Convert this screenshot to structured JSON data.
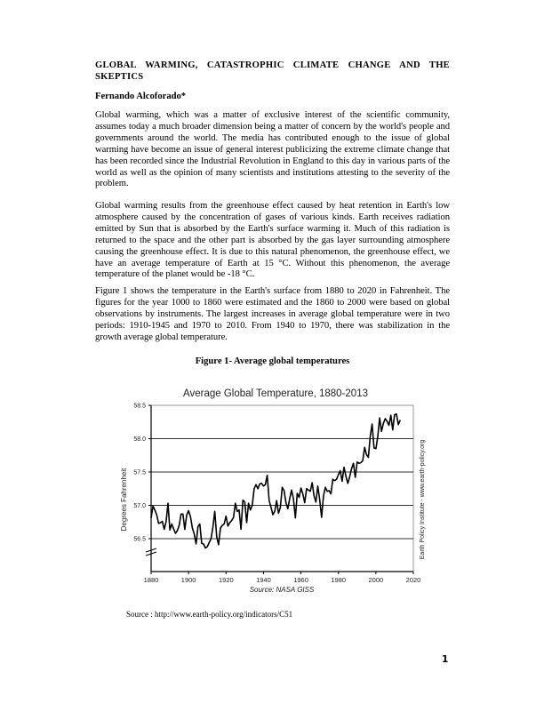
{
  "document": {
    "title": "GLOBAL WARMING, CATASTROPHIC CLIMATE CHANGE AND THE SKEPTICS",
    "author": "Fernando Alcoforado*",
    "paragraphs": [
      "Global warming, which was a matter of exclusive interest of the scientific community, assumes today a much broader dimension being a matter of concern by the world's people and governments around the world. The media has contributed enough to the issue of global warming have become an issue of general interest publicizing the extreme climate change that has been recorded since the Industrial Revolution in England to this day in various parts of the world as well as the opinion of many scientists and institutions attesting to the severity of the problem.",
      "Global warming results from the greenhouse effect caused by heat retention in Earth's low atmosphere caused by the concentration of gases of various kinds. Earth receives radiation emitted by Sun that is absorbed by the Earth's surface warming it. Much of this radiation is returned to the space and the other part is absorbed by the gas layer surrounding atmosphere causing the greenhouse effect. It is due to this natural phenomenon, the greenhouse effect, we have an average temperature of Earth at 15 °C. Without this phenomenon, the average temperature of the planet would be -18 °C.",
      "Figure 1 shows the temperature in the Earth's surface from 1880 to 2020 in Fahrenheit. The figures for the year 1000 to 1860 were estimated and the 1860 to 2000 were based on global observations by instruments.  The largest increases in average global temperature were in two periods: 1910-1945 and 1970 to 2010. From 1940 to 1970, there was stabilization in the growth average global temperature."
    ],
    "figure_caption": "Figure 1- Average global temperatures",
    "source_line": "Source : http://www.earth-policy.org/indicators/C51",
    "page_number": "1"
  },
  "chart_data": {
    "type": "line",
    "title": "Average Global Temperature, 1880-2013",
    "xlabel": "",
    "ylabel": "Degrees Fahrenheit",
    "source_note": "Source: NASA GISS",
    "side_note": "Earth Policy Institute - www.earth-policy.org",
    "xlim": [
      1880,
      2020
    ],
    "ylim": [
      56.0,
      58.5
    ],
    "x_ticks": [
      "1880",
      "1900",
      "1920",
      "1940",
      "1960",
      "1980",
      "2000",
      "2020"
    ],
    "y_ticks": [
      "58.5",
      "58.0",
      "57.5",
      "57.0",
      "56.5"
    ],
    "grid": "horizontal",
    "axis_break": true,
    "line_color": "#000000",
    "series": [
      {
        "name": "Average Global Temperature (°F)",
        "x_start": 1880,
        "x_end": 2013,
        "values": [
          56.81,
          56.99,
          56.93,
          56.86,
          56.73,
          56.74,
          56.76,
          56.64,
          56.76,
          57.03,
          56.63,
          56.72,
          56.65,
          56.58,
          56.62,
          56.7,
          56.87,
          56.87,
          56.64,
          56.85,
          56.92,
          56.83,
          56.66,
          56.57,
          56.42,
          56.68,
          56.72,
          56.43,
          56.42,
          56.36,
          56.38,
          56.44,
          56.5,
          56.67,
          56.91,
          56.53,
          56.41,
          56.66,
          56.7,
          56.72,
          56.84,
          56.69,
          56.74,
          56.77,
          56.82,
          57.03,
          56.91,
          56.93,
          56.64,
          57.08,
          57.05,
          56.74,
          57.03,
          56.93,
          57.0,
          57.25,
          57.31,
          57.25,
          57.32,
          57.33,
          57.29,
          57.31,
          57.45,
          57.07,
          56.97,
          56.86,
          56.91,
          57.07,
          56.88,
          56.97,
          57.27,
          57.22,
          57.04,
          56.95,
          57.1,
          57.23,
          57.1,
          56.81,
          57.18,
          57.12,
          57.26,
          57.17,
          57.04,
          57.25,
          57.23,
          57.21,
          57.34,
          57.14,
          57.05,
          57.29,
          57.09,
          56.82,
          57.14,
          57.27,
          57.21,
          57.22,
          57.17,
          57.39,
          57.37,
          57.39,
          57.46,
          57.52,
          57.36,
          57.57,
          57.44,
          57.33,
          57.43,
          57.55,
          57.63,
          57.42,
          57.65,
          57.63,
          57.64,
          57.67,
          57.87,
          57.76,
          57.72,
          58.03,
          58.22,
          57.86,
          57.85,
          58.03,
          58.31,
          58.11,
          58.23,
          58.3,
          58.26,
          58.2,
          58.35,
          58.13,
          58.36,
          58.37,
          58.21,
          58.28
        ]
      }
    ]
  }
}
